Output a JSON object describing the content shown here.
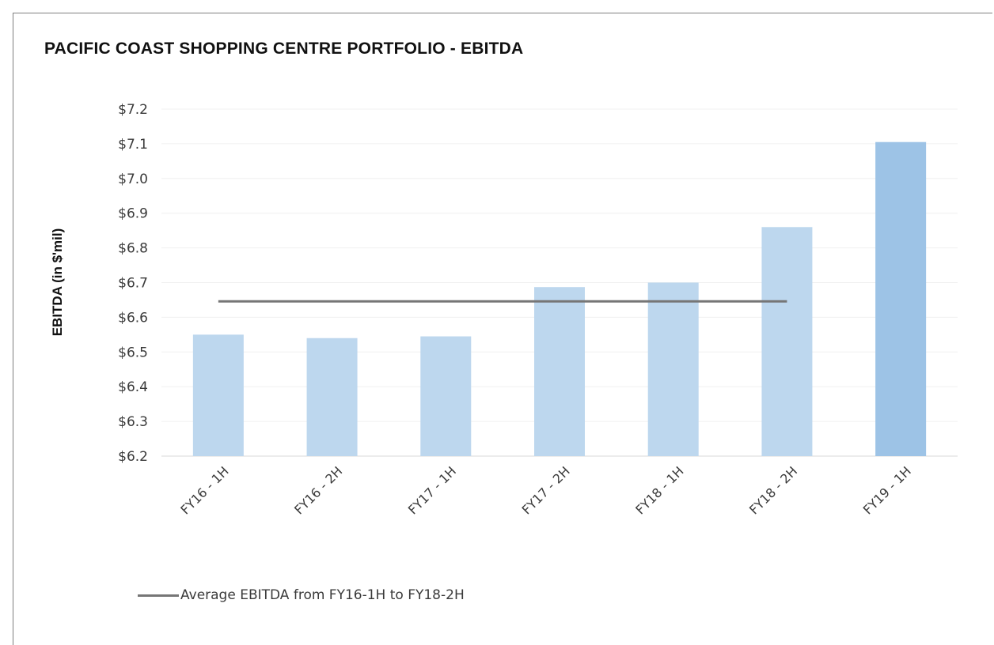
{
  "chart_data": {
    "type": "bar",
    "title": "PACIFIC COAST SHOPPING CENTRE PORTFOLIO - EBITDA",
    "xlabel": "",
    "ylabel": "EBITDA (in $'mil)",
    "ylim": [
      6.2,
      7.2
    ],
    "yticks": [
      "$6.2",
      "$6.3",
      "$6.4",
      "$6.5",
      "$6.6",
      "$6.7",
      "$6.8",
      "$6.9",
      "$7.0",
      "$7.1",
      "$7.2"
    ],
    "categories": [
      "FY16 - 1H",
      "FY16 - 2H",
      "FY17 - 1H",
      "FY17 - 2H",
      "FY18 - 1H",
      "FY18 - 2H",
      "FY19 - 1H"
    ],
    "values": [
      6.55,
      6.54,
      6.545,
      6.687,
      6.7,
      6.86,
      7.105
    ],
    "bar_colors": [
      "#bdd7ee",
      "#bdd7ee",
      "#bdd7ee",
      "#bdd7ee",
      "#bdd7ee",
      "#bdd7ee",
      "#9dc3e6"
    ],
    "reference_line": {
      "label": "Average EBITDA from FY16-1H to FY18-2H",
      "value": 6.646,
      "from_category": "FY16 - 1H",
      "to_category": "FY18 - 2H",
      "color": "#767676"
    },
    "grid": true,
    "legend_position": "bottom-left"
  }
}
